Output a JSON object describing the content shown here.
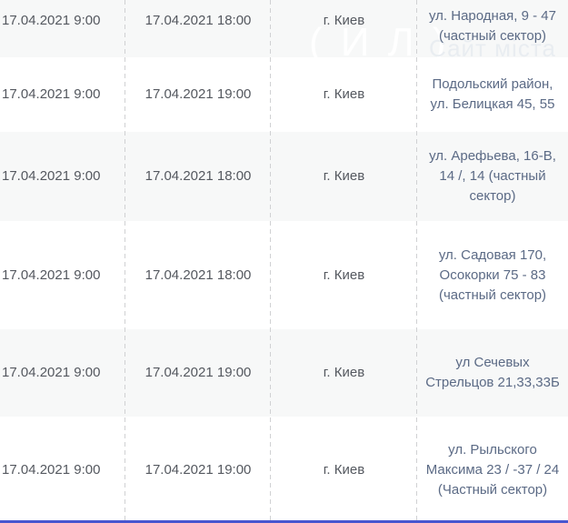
{
  "table": {
    "rows": [
      {
        "start": "17.04.2021 9:00",
        "end": "17.04.2021 18:00",
        "city": "г. Киев",
        "address": "ул. Народная, 9 - 47 (частный сектор)"
      },
      {
        "start": "17.04.2021 9:00",
        "end": "17.04.2021 19:00",
        "city": "г. Киев",
        "address": "Подольский район, ул. Белицкая 45, 55"
      },
      {
        "start": "17.04.2021 9:00",
        "end": "17.04.2021 18:00",
        "city": "г. Киев",
        "address": "ул. Арефьева, 16-В, 14 /, 14 (частный сектор)"
      },
      {
        "start": "17.04.2021 9:00",
        "end": "17.04.2021 18:00",
        "city": "г. Киев",
        "address": "ул. Садовая 170, Осокорки 75 - 83 (частный сектор)"
      },
      {
        "start": "17.04.2021 9:00",
        "end": "17.04.2021 19:00",
        "city": "г. Киев",
        "address": "ул Сечевых Стрельцов 21,33,33Б"
      },
      {
        "start": "17.04.2021 9:00",
        "end": "17.04.2021 19:00",
        "city": "г. Киев",
        "address": "ул. Рыльского Максима 23 / -37 / 24 (Частный сектор)"
      }
    ]
  },
  "watermark": {
    "logo": "( И Л )",
    "text": "Сайт міста"
  },
  "colors": {
    "row_alt_bg": "#f7f8f8",
    "date_text": "#54585f",
    "address_text": "#5b6a85",
    "separator": "#d0d1d3",
    "bottom_bar": "#4856cf"
  }
}
